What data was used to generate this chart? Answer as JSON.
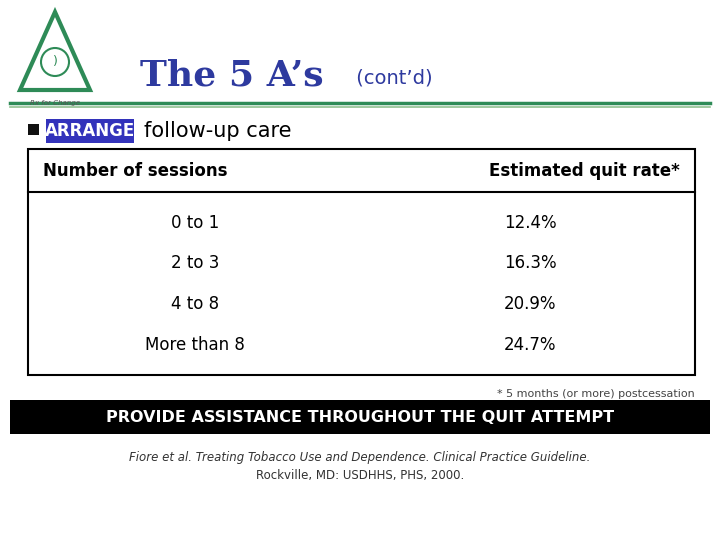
{
  "title_main": "The 5 A’s",
  "title_contd": " (cont’d)",
  "title_color": "#2E3A9F",
  "title_contd_color": "#2E3A9F",
  "bullet_label": "ARRANGE",
  "bullet_text": "follow-up care",
  "bullet_bg_color": "#3333BB",
  "bullet_label_color": "#FFFFFF",
  "bullet_text_color": "#000000",
  "table_headers": [
    "Number of sessions",
    "Estimated quit rate*"
  ],
  "table_rows": [
    [
      "0 to 1",
      "12.4%"
    ],
    [
      "2 to 3",
      "16.3%"
    ],
    [
      "4 to 8",
      "20.9%"
    ],
    [
      "More than 8",
      "24.7%"
    ]
  ],
  "footnote": "* 5 months (or more) postcessation",
  "banner_text": "PROVIDE ASSISTANCE THROUGHOUT THE QUIT ATTEMPT",
  "banner_bg": "#000000",
  "banner_text_color": "#FFFFFF",
  "citation_line1": "Fiore et al. Treating Tobacco Use and Dependence. Clinical Practice Guideline.",
  "citation_line2": "Rockville, MD: USDHHS, PHS, 2000.",
  "bg_color": "#FFFFFF",
  "line_color_green": "#2E8B57",
  "line_color_light": "#90C090",
  "table_border_color": "#000000",
  "logo_color": "#2E8B57",
  "square_bullet_color": "#111111"
}
